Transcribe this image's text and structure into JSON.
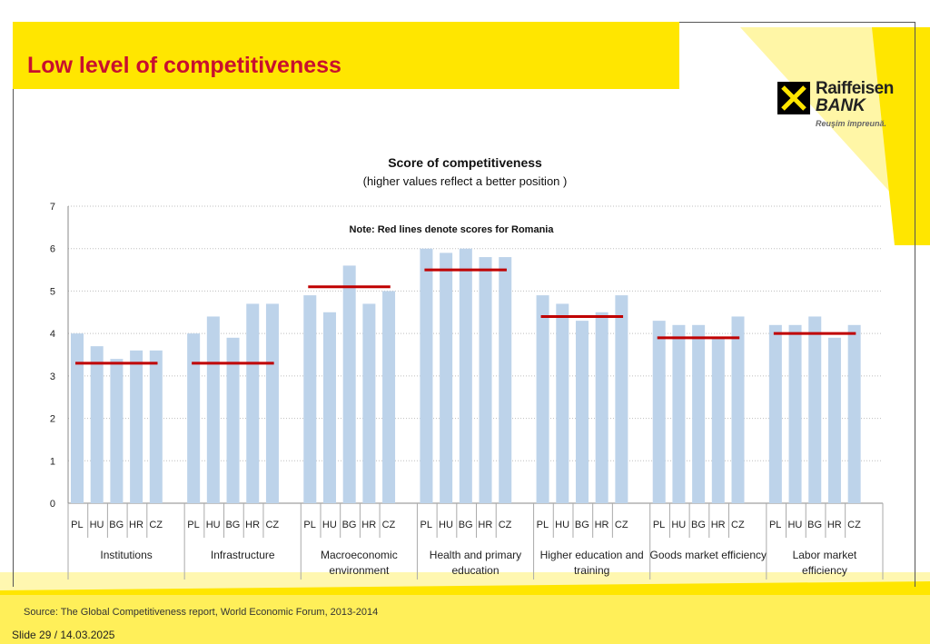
{
  "page": {
    "title": "Low level of competitiveness",
    "source": "Source: The Global Competitiveness report, World Economic Forum, 2013-2014",
    "slide": "Slide 29 / 14.03.2025"
  },
  "logo": {
    "name_line1": "Raiffeisen",
    "name_line2": "BANK",
    "slogan": "Reuşim împreună."
  },
  "colors": {
    "band": "#ffe600",
    "title": "#c8102e",
    "bar": "#bdd3ea",
    "romania": "#c00000",
    "grid": "#bfbfbf"
  },
  "chart_data": {
    "type": "bar",
    "title": "Score of competitiveness",
    "subtitle": "(higher values reflect a better position )",
    "note": "Note: Red lines denote scores for Romania",
    "ylim": [
      0,
      7
    ],
    "yticks": [
      "0",
      "1",
      "2",
      "3",
      "4",
      "5",
      "6",
      "7"
    ],
    "countries": [
      "PL",
      "HU",
      "BG",
      "HR",
      "CZ"
    ],
    "groups": [
      {
        "label_lines": [
          "Institutions"
        ],
        "values": [
          4.0,
          3.7,
          3.4,
          3.6,
          3.6
        ],
        "romania": 3.3
      },
      {
        "label_lines": [
          "Infrastructure"
        ],
        "values": [
          4.0,
          4.4,
          3.9,
          4.7,
          4.7
        ],
        "romania": 3.3
      },
      {
        "label_lines": [
          "Macroeconomic",
          "environment"
        ],
        "values": [
          4.9,
          4.5,
          5.6,
          4.7,
          5.0
        ],
        "romania": 5.1
      },
      {
        "label_lines": [
          "Health and primary",
          "education"
        ],
        "values": [
          6.0,
          5.9,
          6.0,
          5.8,
          5.8
        ],
        "romania": 5.5
      },
      {
        "label_lines": [
          "Higher education and",
          "training"
        ],
        "values": [
          4.9,
          4.7,
          4.3,
          4.5,
          4.9
        ],
        "romania": 4.4
      },
      {
        "label_lines": [
          "Goods market efficiency"
        ],
        "values": [
          4.3,
          4.2,
          4.2,
          3.9,
          4.4
        ],
        "romania": 3.9
      },
      {
        "label_lines": [
          "Labor market",
          "efficiency"
        ],
        "values": [
          4.2,
          4.2,
          4.4,
          3.9,
          4.2
        ],
        "romania": 4.0
      }
    ]
  }
}
